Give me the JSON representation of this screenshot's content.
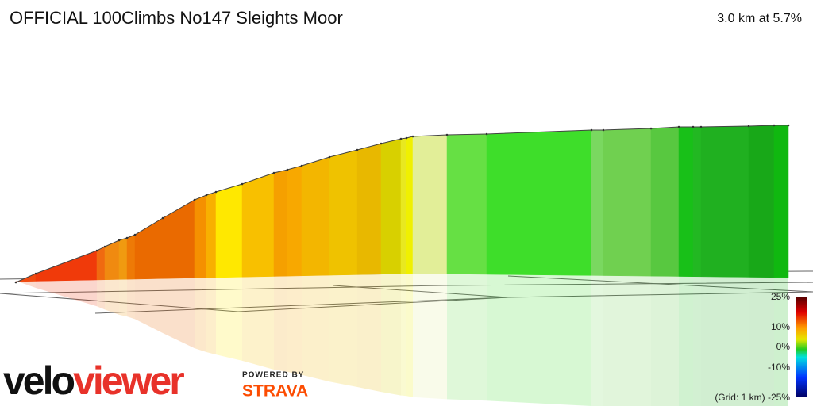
{
  "header": {
    "title": "OFFICIAL 100Climbs No147 Sleights Moor",
    "summary": "3.0 km at 5.7%"
  },
  "legend": {
    "labels": [
      "25%",
      "10%",
      "0%",
      "-10%",
      "(Grid: 1 km) -25%"
    ]
  },
  "branding": {
    "logo_parts": [
      "velo",
      "viewer"
    ],
    "powered_by": "POWERED BY",
    "strava": "STRAVA"
  }
}
